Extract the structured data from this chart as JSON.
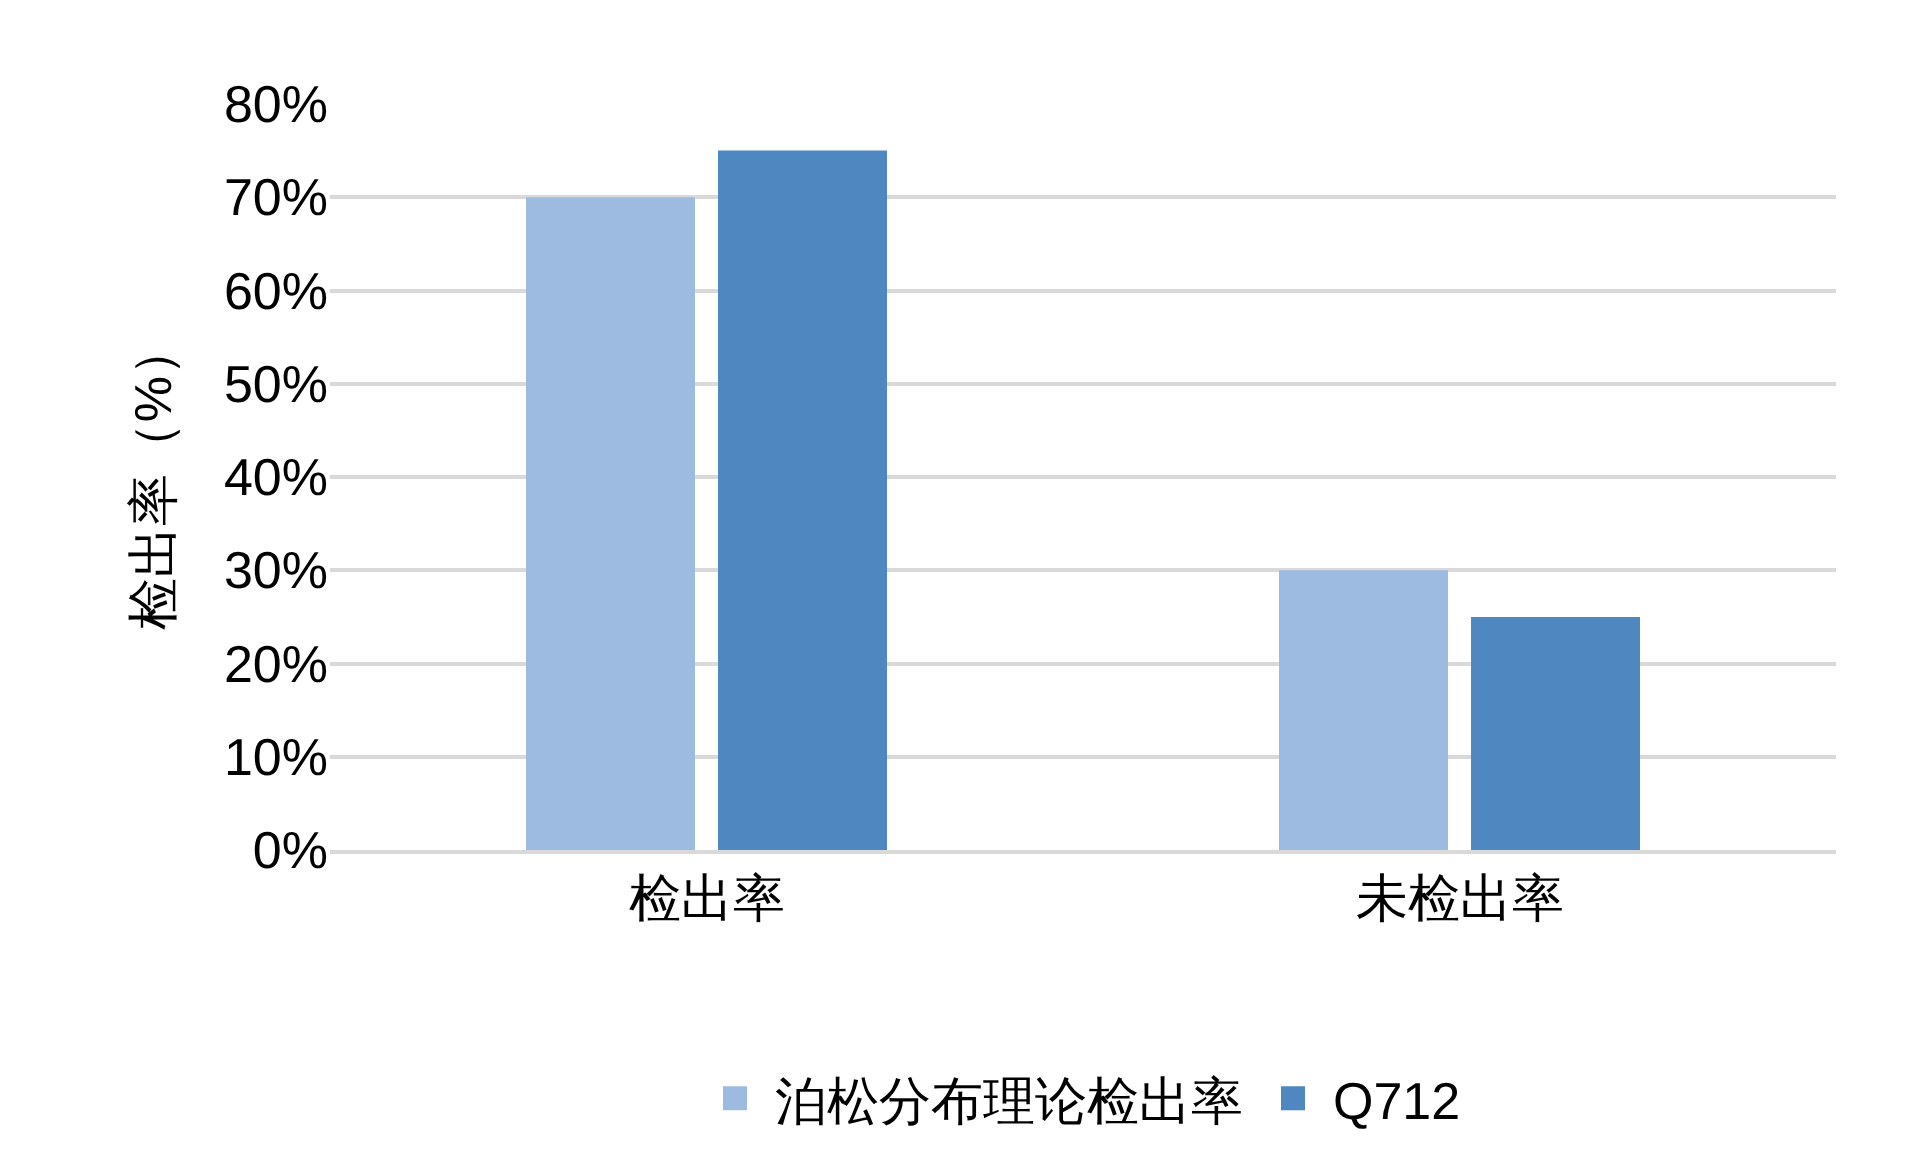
{
  "chart_data": {
    "type": "bar",
    "ylabel": "检出率（%）",
    "categories": [
      "检出率",
      "未检出率"
    ],
    "series": [
      {
        "name": "泊松分布理论检出率",
        "color": "#9dbbe0",
        "values": [
          70,
          30
        ]
      },
      {
        "name": "Q712",
        "color": "#4f88c0",
        "values": [
          75,
          25
        ]
      }
    ],
    "ylim": [
      0,
      80
    ],
    "yticks": [
      {
        "value": 0,
        "label": "0%"
      },
      {
        "value": 10,
        "label": "10%"
      },
      {
        "value": 20,
        "label": "20%"
      },
      {
        "value": 30,
        "label": "30%"
      },
      {
        "value": 40,
        "label": "40%"
      },
      {
        "value": 50,
        "label": "50%"
      },
      {
        "value": 60,
        "label": "60%"
      },
      {
        "value": 70,
        "label": "70%"
      },
      {
        "value": 80,
        "label": "80%"
      }
    ],
    "grid": "y",
    "legend": "bottom"
  }
}
